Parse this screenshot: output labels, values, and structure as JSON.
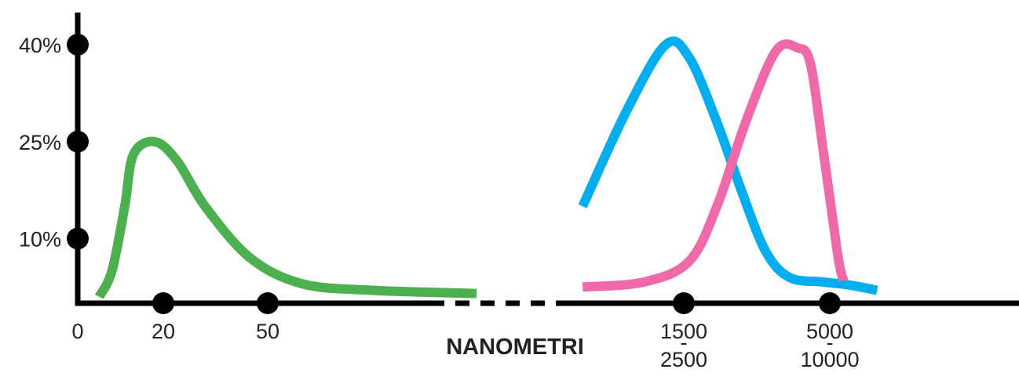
{
  "chart_data": {
    "type": "line",
    "title": "",
    "xlabel": "NANOMETRI",
    "ylabel": "",
    "y_ticks": [
      {
        "value": 10,
        "label": "10%"
      },
      {
        "value": 25,
        "label": "25%"
      },
      {
        "value": 40,
        "label": "40%"
      }
    ],
    "x_ticks": [
      {
        "value": 0,
        "label": [
          "0"
        ],
        "marker": false
      },
      {
        "value": 20,
        "label": [
          "20"
        ],
        "marker": true
      },
      {
        "value": 50,
        "label": [
          "50"
        ],
        "marker": true
      },
      {
        "value": 2000,
        "label": [
          "1500",
          "-",
          "2500"
        ],
        "marker": true
      },
      {
        "value": 7500,
        "label": [
          "5000",
          "-",
          "10000"
        ],
        "marker": true
      }
    ],
    "axis_break": true,
    "grid": false,
    "series": [
      {
        "color": "#4caf50",
        "points": [
          [
            5,
            1
          ],
          [
            8,
            5
          ],
          [
            11,
            15
          ],
          [
            13,
            23
          ],
          [
            18,
            25
          ],
          [
            24,
            22
          ],
          [
            32,
            15
          ],
          [
            45,
            7
          ],
          [
            60,
            3
          ],
          [
            80,
            2
          ],
          [
            110,
            1.5
          ]
        ]
      },
      {
        "color": "#00aeef",
        "points": [
          [
            800,
            15
          ],
          [
            1200,
            30
          ],
          [
            1700,
            40
          ],
          [
            2100,
            38
          ],
          [
            2700,
            28
          ],
          [
            3400,
            17
          ],
          [
            4200,
            8
          ],
          [
            5200,
            4
          ],
          [
            7000,
            3.3
          ],
          [
            9000,
            2.8
          ],
          [
            11500,
            2
          ]
        ]
      },
      {
        "color": "#f06aa9",
        "points": [
          [
            800,
            2.5
          ],
          [
            1400,
            3.3
          ],
          [
            2100,
            6.5
          ],
          [
            2700,
            15
          ],
          [
            3500,
            28
          ],
          [
            4600,
            39
          ],
          [
            5600,
            39.5
          ],
          [
            6300,
            37
          ],
          [
            7100,
            23
          ],
          [
            8100,
            7
          ],
          [
            8500,
            3.5
          ]
        ]
      }
    ]
  }
}
